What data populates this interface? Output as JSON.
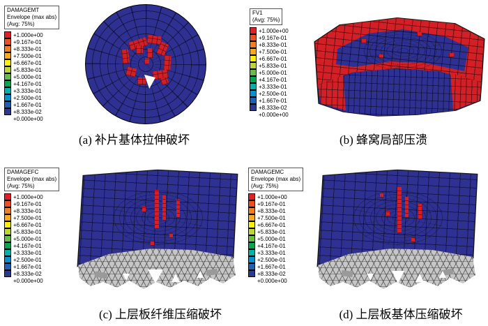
{
  "figure": {
    "panels": {
      "a": {
        "legend_title": "DAMAGEMT",
        "legend_env": "Envelope (max abs)",
        "legend_avg": "(Avg: 75%)",
        "caption": "(a) 补片基体拉伸破坏"
      },
      "b": {
        "legend_title": "FV1",
        "legend_avg": "(Avg: 75%)",
        "caption": "(b) 蜂窝局部压溃"
      },
      "c": {
        "legend_title": "DAMAGEFC",
        "legend_env": "Envelope (max abs)",
        "legend_avg": "(Avg: 75%)",
        "caption": "(c) 上层板纤维压缩破坏"
      },
      "d": {
        "legend_title": "DAMAGEMC",
        "legend_env": "Envelope (max abs)",
        "legend_avg": "(Avg: 75%)",
        "caption": "(d) 上层板基体压缩破坏"
      }
    },
    "legend": {
      "values": [
        "+1.000e+00",
        "+9.167e-01",
        "+8.333e-01",
        "+7.500e-01",
        "+6.667e-01",
        "+5.833e-01",
        "+5.000e-01",
        "+4.167e-01",
        "+3.333e-01",
        "+2.500e-01",
        "+1.667e-01",
        "+8.333e-02",
        "+0.000e+00"
      ],
      "colors": [
        "#e11f26",
        "#f04e23",
        "#f57f20",
        "#faa91a",
        "#fff200",
        "#bfd730",
        "#69bd45",
        "#00a650",
        "#00b2a9",
        "#0093d0",
        "#1b62b7",
        "#2b3990"
      ]
    }
  },
  "colors": {
    "model_blue": "#2e3192",
    "damage_red": "#d31f26",
    "honeycomb_gray": "#c6c6c6",
    "page_bg": "#ffffff"
  }
}
